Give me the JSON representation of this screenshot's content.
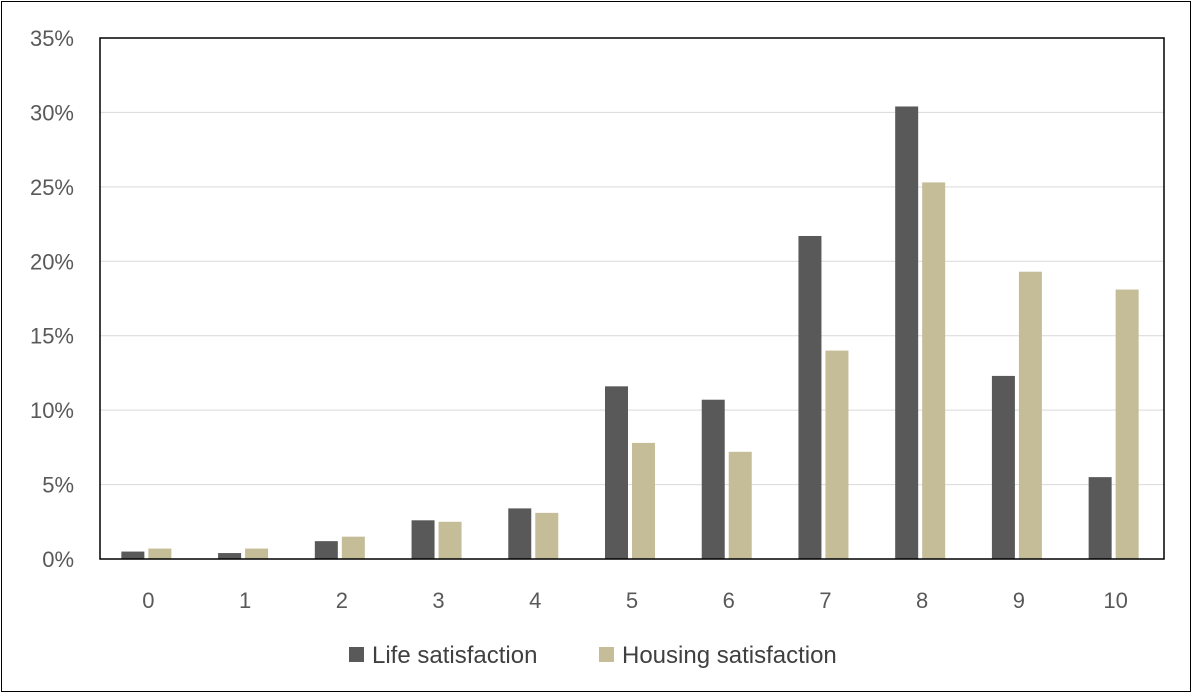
{
  "chart_data": {
    "type": "bar",
    "categories": [
      "0",
      "1",
      "2",
      "3",
      "4",
      "5",
      "6",
      "7",
      "8",
      "9",
      "10"
    ],
    "series": [
      {
        "name": "Life satisfaction",
        "color": "#595959",
        "values": [
          0.5,
          0.4,
          1.2,
          2.6,
          3.4,
          11.6,
          10.7,
          21.7,
          30.4,
          12.3,
          5.5
        ]
      },
      {
        "name": "Housing satisfaction",
        "color": "#C4BD97",
        "values": [
          0.7,
          0.7,
          1.5,
          2.5,
          3.1,
          7.8,
          7.2,
          14.0,
          25.3,
          19.3,
          18.1
        ]
      }
    ],
    "ylim": [
      0,
      35
    ],
    "yticks": [
      0,
      5,
      10,
      15,
      20,
      25,
      30,
      35
    ],
    "ytick_labels": [
      "0%",
      "5%",
      "10%",
      "15%",
      "20%",
      "25%",
      "30%",
      "35%"
    ],
    "grid": true,
    "legend": "bottom"
  }
}
